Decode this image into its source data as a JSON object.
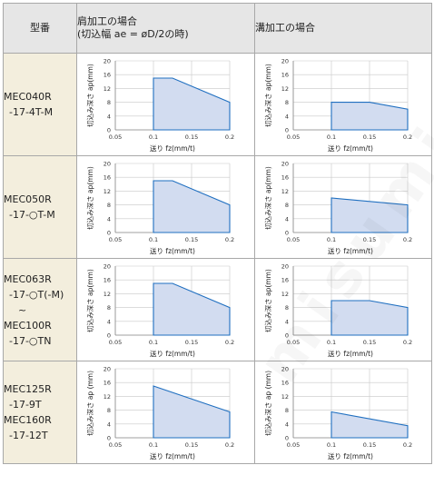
{
  "table": {
    "header_model": "型番",
    "header_shoulder": [
      "肩加工の場合",
      "(切込幅 ae = øD/2の時)"
    ],
    "header_groove": "溝加工の場合"
  },
  "rows": [
    {
      "model": [
        "MEC040R",
        "-17-4T-M"
      ]
    },
    {
      "model": [
        "MEC050R",
        "-17-○T-M"
      ]
    },
    {
      "model": [
        "MEC063R",
        "-17-○T(-M)",
        "~",
        "MEC100R",
        "-17-○TN"
      ]
    },
    {
      "model": [
        "MEC125R",
        "-17-9T",
        "MEC160R",
        "-17-12T"
      ]
    }
  ],
  "chart_data": [
    {
      "type": "area",
      "row": 0,
      "condition": "shoulder",
      "x": [
        0.1,
        0.125,
        0.2
      ],
      "y": [
        15,
        15,
        8
      ],
      "xlim": [
        0.05,
        0.2
      ],
      "ylim": [
        0,
        20
      ],
      "xticks": [
        0.05,
        0.1,
        0.15,
        0.2
      ],
      "yticks": [
        0,
        4,
        8,
        12,
        16,
        20
      ],
      "xlabel": "送り fz(mm/t)",
      "ylabel": "切込み深さ ap(mm)",
      "fill": "#d2dcf0",
      "stroke": "#1f6fc0"
    },
    {
      "type": "area",
      "row": 0,
      "condition": "groove",
      "x": [
        0.1,
        0.15,
        0.2
      ],
      "y": [
        8,
        8,
        6
      ],
      "xlim": [
        0.05,
        0.2
      ],
      "ylim": [
        0,
        20
      ],
      "xticks": [
        0.05,
        0.1,
        0.15,
        0.2
      ],
      "yticks": [
        0,
        4,
        8,
        12,
        16,
        20
      ],
      "xlabel": "送り fz(mm/t)",
      "ylabel": "切込み深さ ap(mm)",
      "fill": "#d2dcf0",
      "stroke": "#1f6fc0"
    },
    {
      "type": "area",
      "row": 1,
      "condition": "shoulder",
      "x": [
        0.1,
        0.125,
        0.2
      ],
      "y": [
        15,
        15,
        8
      ],
      "xlim": [
        0.05,
        0.2
      ],
      "ylim": [
        0,
        20
      ],
      "xticks": [
        0.05,
        0.1,
        0.15,
        0.2
      ],
      "yticks": [
        0,
        4,
        8,
        12,
        16,
        20
      ],
      "xlabel": "送り fz(mm/t)",
      "ylabel": "切込み深さ ap(mm)",
      "fill": "#d2dcf0",
      "stroke": "#1f6fc0"
    },
    {
      "type": "area",
      "row": 1,
      "condition": "groove",
      "x": [
        0.1,
        0.2
      ],
      "y": [
        10,
        8
      ],
      "xlim": [
        0.05,
        0.2
      ],
      "ylim": [
        0,
        20
      ],
      "xticks": [
        0.05,
        0.1,
        0.15,
        0.2
      ],
      "yticks": [
        0,
        4,
        8,
        12,
        16,
        20
      ],
      "xlabel": "送り fz(mm/t)",
      "ylabel": "切込み深さ ap(mm)",
      "fill": "#d2dcf0",
      "stroke": "#1f6fc0"
    },
    {
      "type": "area",
      "row": 2,
      "condition": "shoulder",
      "x": [
        0.1,
        0.125,
        0.2
      ],
      "y": [
        15,
        15,
        8
      ],
      "xlim": [
        0.05,
        0.2
      ],
      "ylim": [
        0,
        20
      ],
      "xticks": [
        0.05,
        0.1,
        0.15,
        0.2
      ],
      "yticks": [
        0,
        4,
        8,
        12,
        16,
        20
      ],
      "xlabel": "送り fz(mm/t)",
      "ylabel": "切込み深さ ap(mm)",
      "fill": "#d2dcf0",
      "stroke": "#1f6fc0"
    },
    {
      "type": "area",
      "row": 2,
      "condition": "groove",
      "x": [
        0.1,
        0.15,
        0.2
      ],
      "y": [
        10,
        10,
        8
      ],
      "xlim": [
        0.05,
        0.2
      ],
      "ylim": [
        0,
        20
      ],
      "xticks": [
        0.05,
        0.1,
        0.15,
        0.2
      ],
      "yticks": [
        0,
        4,
        8,
        12,
        16,
        20
      ],
      "xlabel": "送り fz(mm/t)",
      "ylabel": "切込み深さ ap(mm)",
      "fill": "#d2dcf0",
      "stroke": "#1f6fc0"
    },
    {
      "type": "area",
      "row": 3,
      "condition": "shoulder",
      "x": [
        0.1,
        0.2
      ],
      "y": [
        15,
        7.5
      ],
      "xlim": [
        0.05,
        0.2
      ],
      "ylim": [
        0,
        20
      ],
      "xticks": [
        0.05,
        0.1,
        0.15,
        0.2
      ],
      "yticks": [
        0,
        4,
        8,
        12,
        16,
        20
      ],
      "xlabel": "送り fz(mm/t)",
      "ylabel": "切込み深さ ap (mm)",
      "fill": "#d2dcf0",
      "stroke": "#1f6fc0"
    },
    {
      "type": "area",
      "row": 3,
      "condition": "groove",
      "x": [
        0.1,
        0.2
      ],
      "y": [
        7.5,
        3.5
      ],
      "xlim": [
        0.05,
        0.2
      ],
      "ylim": [
        0,
        20
      ],
      "xticks": [
        0.05,
        0.1,
        0.15,
        0.2
      ],
      "yticks": [
        0,
        4,
        8,
        12,
        16,
        20
      ],
      "xlabel": "送り fz(mm/t)",
      "ylabel": "切込み深さ ap (mm)",
      "fill": "#d2dcf0",
      "stroke": "#1f6fc0"
    }
  ],
  "colors": {
    "header_bg": "#e6e6e6",
    "model_bg": "#f3eedd",
    "grid": "#c8c8c8",
    "border": "#a8a8a8"
  },
  "watermark": "misumi"
}
